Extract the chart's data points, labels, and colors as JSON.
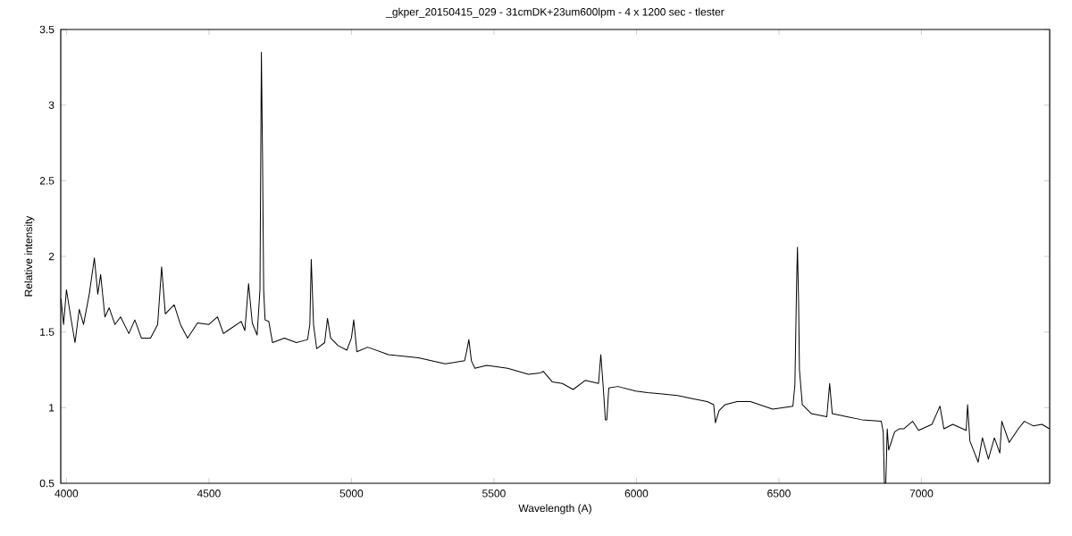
{
  "chart_data": {
    "type": "line",
    "title": "_gkper_20150415_029 - 31cmDK+23um600lpm - 4 x 1200 sec -  tlester",
    "xlabel": "Wavelength (A)",
    "ylabel": "Relative intensity",
    "xlim": [
      3980,
      7450
    ],
    "ylim": [
      0.5,
      3.5
    ],
    "xticks": [
      4000,
      4500,
      5000,
      5500,
      6000,
      6500,
      7000
    ],
    "yticks": [
      0.5,
      1,
      1.5,
      2,
      2.5,
      3,
      3.5
    ],
    "grid": false,
    "marker": "none",
    "line_style": "solid",
    "series": [
      {
        "color": "#000000",
        "x": [
          3981,
          3990,
          4000,
          4015,
          4030,
          4045,
          4060,
          4080,
          4098,
          4110,
          4120,
          4135,
          4150,
          4170,
          4190,
          4219,
          4240,
          4263,
          4295,
          4320,
          4334,
          4347,
          4378,
          4400,
          4425,
          4460,
          4500,
          4530,
          4551,
          4566,
          4613,
          4626,
          4639,
          4652,
          4669,
          4679,
          4684,
          4688,
          4692,
          4697,
          4710,
          4723,
          4765,
          4807,
          4846,
          4854,
          4859,
          4867,
          4878,
          4906,
          4916,
          4927,
          4953,
          4984,
          5000,
          5008,
          5019,
          5057,
          5130,
          5235,
          5329,
          5397,
          5404,
          5412,
          5421,
          5433,
          5475,
          5548,
          5621,
          5663,
          5673,
          5705,
          5740,
          5778,
          5820,
          5867,
          5875,
          5883,
          5891,
          5896,
          5903,
          5935,
          5997,
          6039,
          6091,
          6144,
          6196,
          6248,
          6271,
          6277,
          6290,
          6311,
          6353,
          6400,
          6478,
          6549,
          6556,
          6562,
          6565,
          6569,
          6572,
          6582,
          6614,
          6668,
          6678,
          6687,
          6739,
          6791,
          6859,
          6866,
          6870,
          6875,
          6880,
          6885,
          6906,
          6922,
          6938,
          6969,
          6990,
          7037,
          7065,
          7079,
          7110,
          7157,
          7162,
          7170,
          7199,
          7214,
          7235,
          7256,
          7275,
          7282,
          7308,
          7340,
          7361,
          7392,
          7423,
          7449
        ],
        "values": [
          1.72,
          1.55,
          1.78,
          1.6,
          1.43,
          1.65,
          1.55,
          1.75,
          1.99,
          1.75,
          1.88,
          1.6,
          1.66,
          1.55,
          1.6,
          1.49,
          1.58,
          1.46,
          1.46,
          1.55,
          1.93,
          1.62,
          1.68,
          1.55,
          1.46,
          1.56,
          1.55,
          1.6,
          1.49,
          1.51,
          1.57,
          1.51,
          1.82,
          1.56,
          1.48,
          1.78,
          3.35,
          2.67,
          1.78,
          1.58,
          1.57,
          1.43,
          1.46,
          1.43,
          1.45,
          1.55,
          1.98,
          1.55,
          1.39,
          1.43,
          1.59,
          1.46,
          1.41,
          1.38,
          1.46,
          1.58,
          1.37,
          1.4,
          1.35,
          1.33,
          1.29,
          1.31,
          1.37,
          1.45,
          1.31,
          1.26,
          1.28,
          1.26,
          1.22,
          1.23,
          1.24,
          1.17,
          1.16,
          1.12,
          1.18,
          1.16,
          1.35,
          1.15,
          0.92,
          0.92,
          1.13,
          1.14,
          1.11,
          1.1,
          1.09,
          1.08,
          1.06,
          1.04,
          1.02,
          0.9,
          0.98,
          1.02,
          1.04,
          1.04,
          0.99,
          1.01,
          1.15,
          1.82,
          2.06,
          1.7,
          1.25,
          1.02,
          0.96,
          0.94,
          1.16,
          0.96,
          0.94,
          0.92,
          0.91,
          0.84,
          0.5,
          0.5,
          0.86,
          0.72,
          0.84,
          0.86,
          0.86,
          0.91,
          0.85,
          0.89,
          1.01,
          0.86,
          0.89,
          0.85,
          1.02,
          0.78,
          0.64,
          0.8,
          0.66,
          0.8,
          0.7,
          0.91,
          0.77,
          0.86,
          0.91,
          0.88,
          0.89,
          0.86
        ]
      }
    ]
  }
}
